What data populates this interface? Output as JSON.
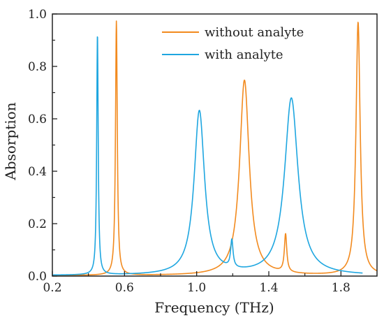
{
  "chart_data": {
    "type": "line",
    "title": "",
    "xlabel": "Frequency (THz)",
    "ylabel": "Absorption",
    "xlim": [
      0.2,
      2.0
    ],
    "ylim": [
      0.0,
      1.0
    ],
    "xticks": [
      0.2,
      0.6,
      1.0,
      1.4,
      1.8
    ],
    "xtick_labels": [
      "0.2",
      "0.6",
      "1.0",
      "1.4",
      "1.8"
    ],
    "yticks": [
      0.0,
      0.2,
      0.4,
      0.6,
      0.8,
      1.0
    ],
    "ytick_labels": [
      "0.0",
      "0.2",
      "0.4",
      "0.6",
      "0.8",
      "1.0"
    ],
    "grid": false,
    "legend_position": "top-right",
    "series": [
      {
        "name": "without analyte",
        "color": "#f28a1e",
        "base": 0.002,
        "x_range": [
          0.2,
          2.0
        ],
        "peaks": [
          {
            "center": 0.555,
            "height": 0.97,
            "width": 0.006
          },
          {
            "center": 1.265,
            "height": 0.745,
            "width": 0.032
          },
          {
            "center": 1.493,
            "height": 0.145,
            "width": 0.008
          },
          {
            "center": 1.895,
            "height": 0.965,
            "width": 0.014
          }
        ]
      },
      {
        "name": "with analyte",
        "color": "#1ea6e0",
        "base": 0.002,
        "x_range": [
          0.2,
          1.92
        ],
        "peaks": [
          {
            "center": 0.45,
            "height": 0.92,
            "width": 0.005
          },
          {
            "center": 1.015,
            "height": 0.625,
            "width": 0.035
          },
          {
            "center": 1.195,
            "height": 0.105,
            "width": 0.008
          },
          {
            "center": 1.525,
            "height": 0.675,
            "width": 0.045
          }
        ]
      }
    ]
  }
}
